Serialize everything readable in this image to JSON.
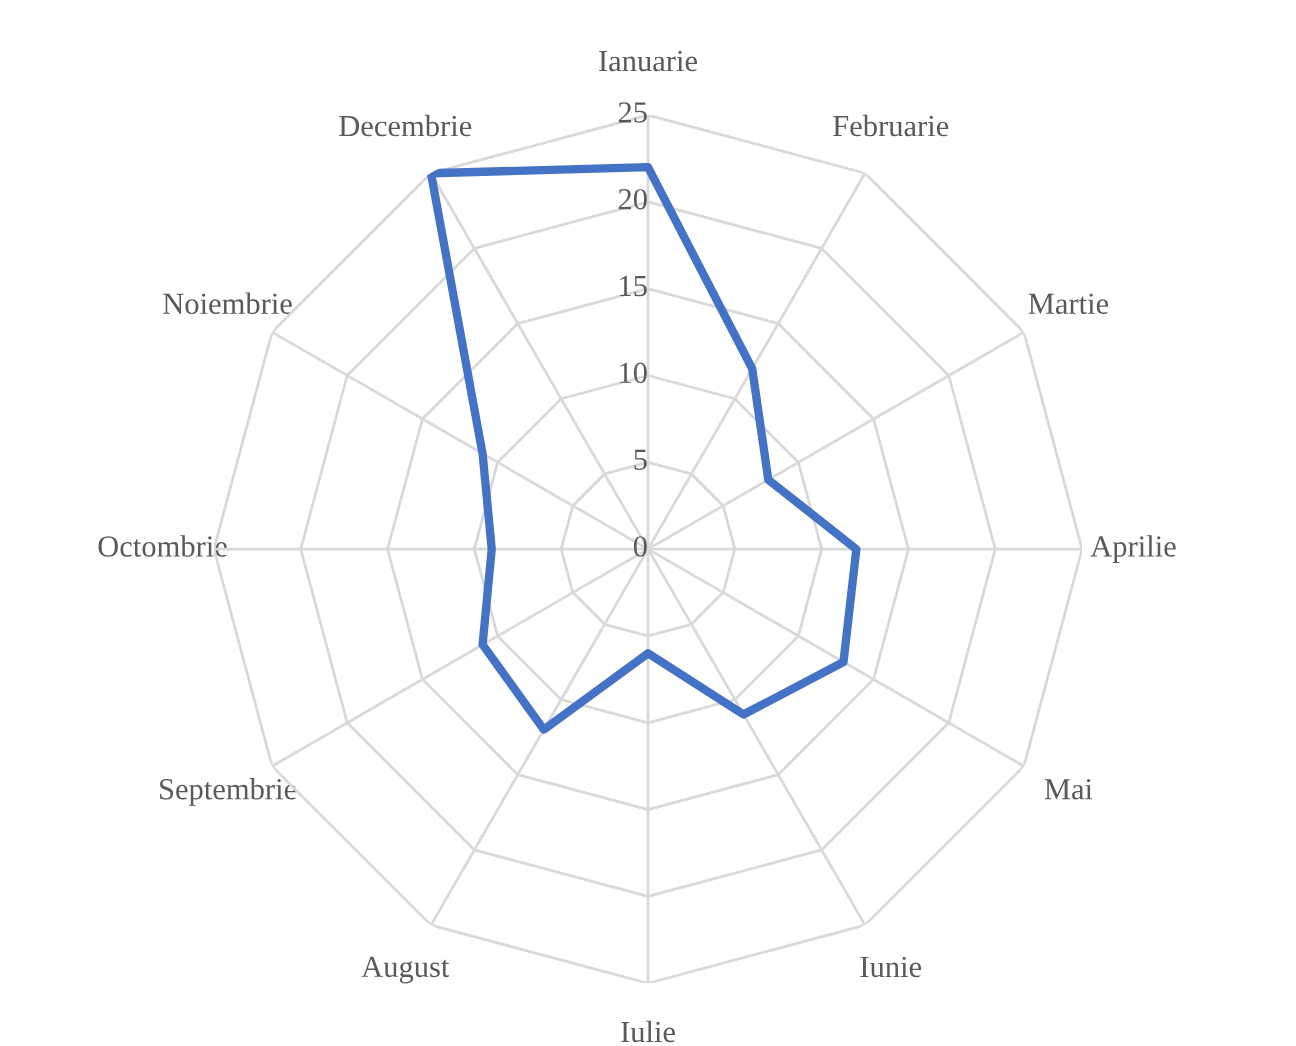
{
  "chart_data": {
    "type": "radar",
    "categories": [
      "Ianuarie",
      "Februarie",
      "Martie",
      "Aprilie",
      "Mai",
      "Iunie",
      "Iulie",
      "August",
      "Septembrie",
      "Octombrie",
      "Noiembrie",
      "Decembrie"
    ],
    "series": [
      {
        "color": "#4472c4",
        "values": [
          22,
          12,
          8,
          12,
          13,
          11,
          6,
          12,
          11,
          9,
          11,
          25
        ]
      }
    ],
    "ylim": [
      0,
      25
    ],
    "yticks": [
      0,
      5,
      10,
      15,
      20,
      25
    ],
    "grid": true,
    "marker": "none",
    "line_style": "solid"
  }
}
